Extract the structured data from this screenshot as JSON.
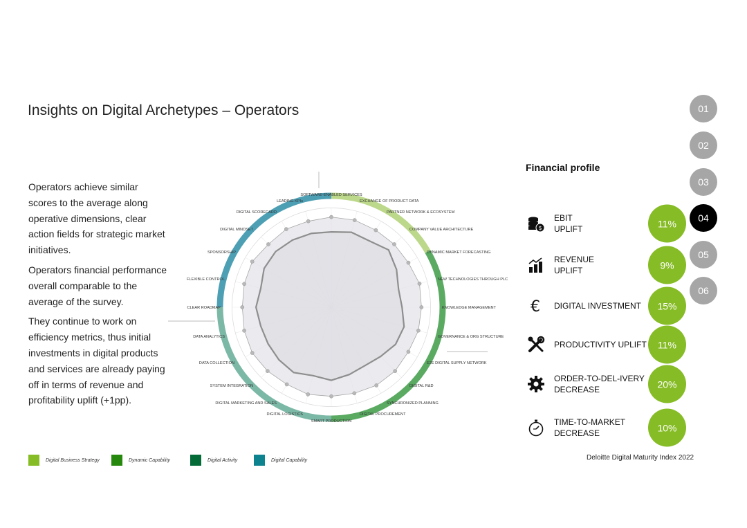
{
  "title": "Insights on Digital Archetypes – Operators",
  "paragraphs": [
    "Operators achieve similar scores to the average along operative dimensions, clear action fields for strategic market initiatives.",
    "Operators financial performance overall comparable to the average of the survey.",
    "They continue to work on efficiency metrics, thus initial investments in digital products and services are already paying off in terms of revenue and profitability uplift (+1pp)."
  ],
  "nav": {
    "items": [
      "01",
      "02",
      "03",
      "04",
      "05",
      "06"
    ],
    "active": "04"
  },
  "financial_profile": {
    "title": "Financial profile",
    "rows": [
      {
        "icon": "coins-icon",
        "label": "EBIT\nUPLIFT",
        "value": "11%"
      },
      {
        "icon": "bar-chart-icon",
        "label": "REVENUE\nUPLIFT",
        "value": "9%"
      },
      {
        "icon": "euro-icon",
        "label": "DIGITAL INVESTMENT",
        "value": "15%"
      },
      {
        "icon": "tools-icon",
        "label": "PRODUCTIVITY UPLIFT",
        "value": "11%"
      },
      {
        "icon": "gear-icon",
        "label": "ORDER-TO-DEL-IVERY\nDECREASE",
        "value": "20%"
      },
      {
        "icon": "stopwatch-icon",
        "label": "TIME-TO-MARKET\nDECREASE",
        "value": "10%"
      }
    ]
  },
  "legend": [
    {
      "label": "Digital Business Strategy",
      "color": "#86bc25"
    },
    {
      "label": "Dynamic Capability",
      "color": "#26890d"
    },
    {
      "label": "Digital Activity",
      "color": "#046a38"
    },
    {
      "label": "Digital Capability",
      "color": "#0d8390"
    }
  ],
  "source": "Deloitte Digital Maturity Index 2022",
  "chart_data": {
    "type": "radar",
    "axes": [
      "SOFTWARE-ENABLED SERVICES",
      "EXCHANGE OF PRODUCT DATA",
      "PARTNER NETWORK & ECOSYSTEM",
      "COMPANY VALUE ARCHITECTURE",
      "DYNAMIC MARKET FORECASTING",
      "NEW TECHNOLOGIES THROUGH PLC",
      "KNOWLEDGE MANAGEMENT",
      "GOVERNANCE & ORG STRUCTURE",
      "E2E DIGITAL SUPPLY NETWORK",
      "DIGITAL R&D",
      "SYNCHRONIZED PLANNING",
      "DIGITAL PROCUREMENT",
      "SMART PRODUCTION",
      "DIGITAL LOGISTICS",
      "DIGITAL MARKETING AND SALES",
      "SYSTEM INTEGRATION",
      "DATA COLLECTION",
      "DATA ANALYTICS",
      "CLEAR ROADMAP",
      "FLEXIBLE CONTROL",
      "SPONSORSHIP",
      "DIGITAL MINDSET",
      "DIGITAL SCORECARD",
      "LEADING KPIs"
    ],
    "series": [
      {
        "values": [
          0.79,
          0.79,
          0.78,
          0.78,
          0.78,
          0.8,
          0.79,
          0.79,
          0.78,
          0.79,
          0.79,
          0.78,
          0.78,
          0.79,
          0.78,
          0.79,
          0.8,
          0.79,
          0.78,
          0.79,
          0.8,
          0.78,
          0.79,
          0.78
        ]
      },
      {
        "values": [
          0.66,
          0.68,
          0.67,
          0.71,
          0.66,
          0.61,
          0.62,
          0.66,
          0.65,
          0.61,
          0.59,
          0.61,
          0.64,
          0.62,
          0.66,
          0.65,
          0.64,
          0.64,
          0.66,
          0.64,
          0.68,
          0.69,
          0.68,
          0.67
        ]
      }
    ],
    "segments": [
      {
        "group": "Digital Business Strategy",
        "color": "#86bc25"
      },
      {
        "group": "Dynamic Capability",
        "color": "#26890d"
      },
      {
        "group": "Digital Activity",
        "color": "#046a38"
      },
      {
        "group": "Digital Capability",
        "color": "#0d8390"
      }
    ]
  }
}
